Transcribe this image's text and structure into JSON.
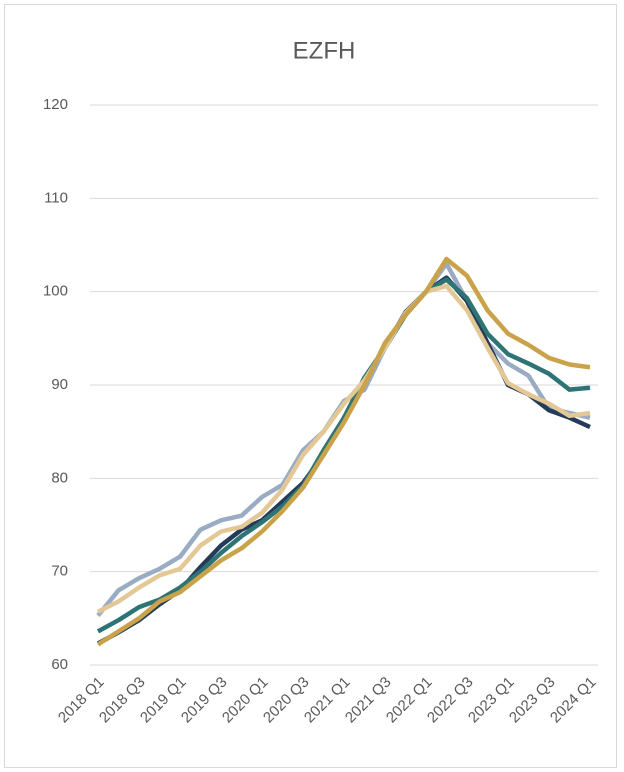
{
  "chart_data": {
    "type": "line",
    "title": "EZFH",
    "categories": [
      "2018 Q1",
      null,
      "2018 Q3",
      null,
      "2019 Q1",
      null,
      "2019 Q3",
      null,
      "2020 Q1",
      null,
      "2020 Q3",
      null,
      "2021 Q1",
      null,
      "2021 Q3",
      null,
      "2022 Q1",
      null,
      "2022 Q3",
      null,
      "2023 Q1",
      null,
      "2023 Q3",
      null,
      "2024 Q1"
    ],
    "series": [
      {
        "color": "#9aabc4",
        "values": [
          65.3,
          68,
          69.3,
          70.3,
          71.6,
          74.5,
          75.5,
          76,
          78,
          79.3,
          83,
          85,
          88.3,
          89.5,
          94,
          97.5,
          100,
          103,
          99,
          94.5,
          92.3,
          91,
          87.5,
          87,
          86.5
        ]
      },
      {
        "color": "#243b5a",
        "values": [
          62.3,
          63.5,
          64.8,
          66.5,
          68,
          70.5,
          72.8,
          74.5,
          75.5,
          77.5,
          79.5,
          82.5,
          86.5,
          90.5,
          94,
          97.8,
          100,
          101.5,
          99,
          94.5,
          90,
          89,
          87.3,
          86.5,
          85.5
        ]
      },
      {
        "color": "#2e7475",
        "values": [
          63.6,
          64.8,
          66.2,
          67,
          68.3,
          70,
          72,
          73.8,
          75.3,
          77,
          79.2,
          83,
          86.5,
          90.8,
          94,
          97.5,
          100,
          101.3,
          99.3,
          95.5,
          93.3,
          92.3,
          91.2,
          89.5,
          89.7
        ]
      },
      {
        "color": "#e3c896",
        "values": [
          65.7,
          66.8,
          68.3,
          69.6,
          70.3,
          72.8,
          74.3,
          74.8,
          76.3,
          78.8,
          82.5,
          85,
          88,
          90.5,
          94,
          97.7,
          100,
          100.6,
          98,
          94,
          90.2,
          89,
          88,
          86.7,
          87
        ]
      },
      {
        "color": "#c9a24a",
        "values": [
          62.2,
          63.6,
          65,
          66.8,
          67.8,
          69.5,
          71.2,
          72.5,
          74.3,
          76.5,
          79,
          82.5,
          86,
          90,
          94.5,
          97.5,
          100,
          103.5,
          101.7,
          98,
          95.5,
          94.3,
          92.9,
          92.2,
          91.9
        ]
      }
    ],
    "ylim": [
      60,
      120
    ],
    "yticks": [
      60,
      70,
      80,
      90,
      100,
      110,
      120
    ],
    "grid": true
  }
}
